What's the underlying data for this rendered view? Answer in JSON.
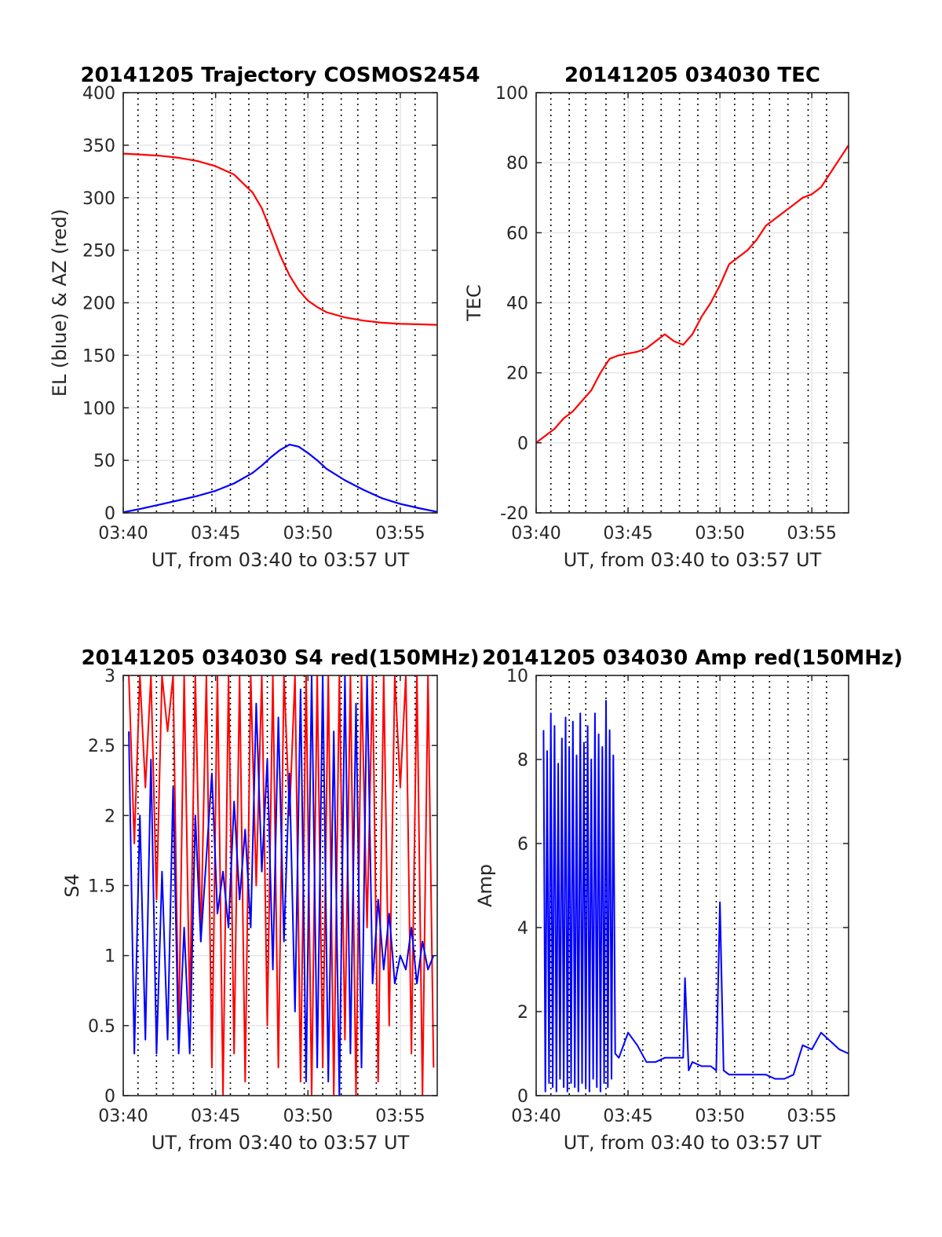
{
  "colors": {
    "red_series": "#ff0000",
    "blue_series": "#0000ff",
    "grid": "#e6e6e6",
    "axes": "#262626",
    "event_markers": "#000000"
  },
  "event_marker_times_min": [
    0.8,
    1.8,
    2.7,
    3.8,
    4.8,
    5.8,
    6.8,
    7.8,
    8.8,
    9.8,
    10.8,
    11.8,
    12.7,
    13.7,
    14.8,
    15.8
  ],
  "chart_data": [
    {
      "id": "trajectory",
      "type": "line",
      "title": "20141205 Trajectory COSMOS2454",
      "xlabel": "UT, from 03:40 to 03:57 UT",
      "ylabel": "EL (blue) & AZ (red)",
      "xlim": [
        0,
        17
      ],
      "ylim": [
        0,
        400
      ],
      "xticks": [
        0,
        5,
        10,
        15
      ],
      "xticklabels": [
        "03:40",
        "03:45",
        "03:50",
        "03:55"
      ],
      "yticks": [
        0,
        50,
        100,
        150,
        200,
        250,
        300,
        350,
        400
      ],
      "yticklabels": [
        "0",
        "50",
        "100",
        "150",
        "200",
        "250",
        "300",
        "350",
        "400"
      ],
      "grid": true,
      "series": [
        {
          "color": "red",
          "x": [
            0.0,
            1.0,
            2.0,
            3.0,
            4.0,
            5.0,
            6.0,
            7.0,
            7.5,
            8.0,
            8.5,
            9.0,
            9.5,
            10.0,
            10.5,
            11.0,
            12.0,
            13.0,
            14.0,
            15.0,
            16.0,
            17.0
          ],
          "values": [
            342,
            341,
            340,
            338,
            335,
            330,
            322,
            305,
            290,
            268,
            245,
            226,
            212,
            202,
            196,
            191,
            186,
            183,
            181,
            180,
            179.5,
            179
          ]
        },
        {
          "color": "blue",
          "x": [
            0.0,
            1.0,
            2.0,
            3.0,
            4.0,
            5.0,
            6.0,
            7.0,
            7.5,
            8.0,
            8.5,
            9.0,
            9.5,
            10.0,
            10.5,
            11.0,
            12.0,
            13.0,
            14.0,
            15.0,
            16.0,
            17.0
          ],
          "values": [
            0.5,
            4,
            8,
            12,
            16,
            21,
            28,
            38,
            45,
            53,
            60,
            65,
            63,
            57,
            50,
            42,
            31,
            22,
            14,
            8.5,
            4.5,
            1
          ]
        }
      ]
    },
    {
      "id": "tec",
      "type": "line",
      "title": "20141205 034030 TEC",
      "xlabel": "UT, from 03:40 to 03:57 UT",
      "ylabel": "TEC",
      "xlim": [
        0,
        17
      ],
      "ylim": [
        -20,
        100
      ],
      "xticks": [
        0,
        5,
        10,
        15
      ],
      "xticklabels": [
        "03:40",
        "03:45",
        "03:50",
        "03:55"
      ],
      "yticks": [
        -20,
        0,
        20,
        40,
        60,
        80,
        100
      ],
      "yticklabels": [
        "-20",
        "0",
        "20",
        "40",
        "60",
        "80",
        "100"
      ],
      "grid": true,
      "series": [
        {
          "color": "red",
          "x": [
            0.0,
            0.5,
            1.0,
            1.5,
            2.0,
            2.5,
            3.0,
            3.5,
            4.0,
            4.5,
            5.0,
            5.5,
            6.0,
            6.5,
            7.0,
            7.5,
            8.0,
            8.5,
            9.0,
            9.5,
            10.0,
            10.5,
            11.0,
            11.5,
            12.0,
            12.5,
            13.0,
            13.5,
            14.0,
            14.5,
            15.0,
            15.5,
            16.0,
            16.5,
            17.0
          ],
          "values": [
            0,
            2,
            4,
            7,
            9,
            12,
            15,
            20,
            24,
            25,
            25.5,
            26,
            27,
            29,
            31,
            29,
            28,
            31,
            36,
            40,
            45,
            51,
            53,
            55,
            58,
            62,
            64,
            66,
            68,
            70,
            71,
            73,
            77,
            81,
            85
          ]
        }
      ]
    },
    {
      "id": "s4",
      "type": "line",
      "title": "20141205 034030 S4 red(150MHz)",
      "xlabel": "UT, from 03:40 to 03:57 UT",
      "ylabel": "S4",
      "xlim": [
        0,
        17
      ],
      "ylim": [
        0,
        3
      ],
      "xticks": [
        0,
        5,
        10,
        15
      ],
      "xticklabels": [
        "03:40",
        "03:45",
        "03:50",
        "03:55"
      ],
      "yticks": [
        0,
        0.5,
        1,
        1.5,
        2,
        2.5,
        3
      ],
      "yticklabels": [
        "0",
        "0.5",
        "1",
        "1.5",
        "2",
        "2.5",
        "3"
      ],
      "grid": true,
      "series": [
        {
          "color": "red",
          "x": [
            0.3,
            0.6,
            0.9,
            1.2,
            1.5,
            1.8,
            2.1,
            2.4,
            2.7,
            3.0,
            3.3,
            3.6,
            3.9,
            4.2,
            4.5,
            4.8,
            5.1,
            5.4,
            5.7,
            6.0,
            6.3,
            6.6,
            6.9,
            7.2,
            7.5,
            7.8,
            8.1,
            8.4,
            8.7,
            9.0,
            9.3,
            9.6,
            9.9,
            10.2,
            10.5,
            10.8,
            11.1,
            11.4,
            11.7,
            12.0,
            12.3,
            12.6,
            12.9,
            13.2,
            13.5,
            13.8,
            14.1,
            14.4,
            14.7,
            15.0,
            15.3,
            15.6,
            15.9,
            16.2,
            16.5,
            16.8
          ],
          "values": [
            3,
            1.8,
            3,
            2.2,
            3,
            1.4,
            3,
            2.6,
            3,
            0.4,
            3,
            0.6,
            3,
            1.1,
            3,
            0.2,
            3,
            0,
            3,
            0.3,
            3,
            0.1,
            3,
            1.5,
            3,
            0.5,
            3,
            0.2,
            3,
            2.0,
            3,
            0.1,
            3,
            0,
            3,
            0.2,
            3,
            0,
            3,
            0.4,
            3,
            0,
            3,
            1.2,
            3,
            0.1,
            3,
            0.5,
            3,
            2.2,
            3,
            0.3,
            3,
            0,
            3,
            0.2
          ]
        },
        {
          "color": "blue",
          "x": [
            0.3,
            0.6,
            0.9,
            1.2,
            1.5,
            1.8,
            2.1,
            2.4,
            2.7,
            3.0,
            3.3,
            3.6,
            3.9,
            4.2,
            4.5,
            4.8,
            5.1,
            5.4,
            5.7,
            6.0,
            6.3,
            6.6,
            6.9,
            7.2,
            7.5,
            7.8,
            8.1,
            8.4,
            8.7,
            9.0,
            9.3,
            9.6,
            9.9,
            10.2,
            10.5,
            10.8,
            11.1,
            11.4,
            11.7,
            12.0,
            12.3,
            12.6,
            12.9,
            13.2,
            13.5,
            13.8,
            14.1,
            14.4,
            14.7,
            15.0,
            15.3,
            15.6,
            15.9,
            16.2,
            16.5,
            16.8
          ],
          "values": [
            2.6,
            0.3,
            2.0,
            0.4,
            2.4,
            0.3,
            1.6,
            0.4,
            2.2,
            0.3,
            1.2,
            0.3,
            2.0,
            1.1,
            1.7,
            2.3,
            1.3,
            1.6,
            1.2,
            2.1,
            1.4,
            1.9,
            1.2,
            2.8,
            1.6,
            2.4,
            0.9,
            2.7,
            1.1,
            2.3,
            0.6,
            2.9,
            0.1,
            3.0,
            0.2,
            3.0,
            0.1,
            2.6,
            0.0,
            3.0,
            0.3,
            2.8,
            0.2,
            3.0,
            0.8,
            1.4,
            0.9,
            1.3,
            0.8,
            1.0,
            0.9,
            1.2,
            0.8,
            1.1,
            0.9,
            1.0
          ]
        }
      ]
    },
    {
      "id": "amp",
      "type": "line",
      "title": "20141205 034030 Amp red(150MHz)",
      "xlabel": "UT, from 03:40 to 03:57 UT",
      "ylabel": "Amp",
      "xlim": [
        0,
        17
      ],
      "ylim": [
        0,
        10
      ],
      "xticks": [
        0,
        5,
        10,
        15
      ],
      "xticklabels": [
        "03:40",
        "03:45",
        "03:50",
        "03:55"
      ],
      "yticks": [
        0,
        2,
        4,
        6,
        8,
        10
      ],
      "yticklabels": [
        "0",
        "2",
        "4",
        "6",
        "8",
        "10"
      ],
      "grid": true,
      "series": [
        {
          "color": "blue",
          "x": [
            0.4,
            0.5,
            0.6,
            0.7,
            0.8,
            0.9,
            1.0,
            1.1,
            1.2,
            1.3,
            1.4,
            1.5,
            1.6,
            1.7,
            1.8,
            1.9,
            2.0,
            2.1,
            2.2,
            2.3,
            2.4,
            2.5,
            2.6,
            2.7,
            2.8,
            2.9,
            3.0,
            3.1,
            3.2,
            3.3,
            3.4,
            3.5,
            3.6,
            3.7,
            3.8,
            3.9,
            4.0,
            4.1,
            4.2,
            4.3,
            4.5,
            5.0,
            5.5,
            6.0,
            6.5,
            7.0,
            7.5,
            8.0,
            8.1,
            8.3,
            8.5,
            9.0,
            9.5,
            9.8,
            10.0,
            10.2,
            10.5,
            11.0,
            11.5,
            12.0,
            12.5,
            13.0,
            13.5,
            14.0,
            14.5,
            15.0,
            15.5,
            16.0,
            16.5,
            17.0
          ],
          "values": [
            8.7,
            0.1,
            8.2,
            0.3,
            9.1,
            0.2,
            8.8,
            0.1,
            7.9,
            0.4,
            8.5,
            0.2,
            9.0,
            0.1,
            8.3,
            0.3,
            8.9,
            0.2,
            8.1,
            0.1,
            9.1,
            0.3,
            8.4,
            0.2,
            8.8,
            0.1,
            8.0,
            0.4,
            9.1,
            0.2,
            8.6,
            0.1,
            8.3,
            0.3,
            9.4,
            0.2,
            8.7,
            0.4,
            8.1,
            1.0,
            0.9,
            1.5,
            1.2,
            0.8,
            0.8,
            0.9,
            0.9,
            0.9,
            2.8,
            0.6,
            0.8,
            0.7,
            0.7,
            0.6,
            4.6,
            0.6,
            0.5,
            0.5,
            0.5,
            0.5,
            0.5,
            0.4,
            0.4,
            0.5,
            1.2,
            1.1,
            1.5,
            1.3,
            1.1,
            1.0
          ]
        }
      ]
    }
  ]
}
